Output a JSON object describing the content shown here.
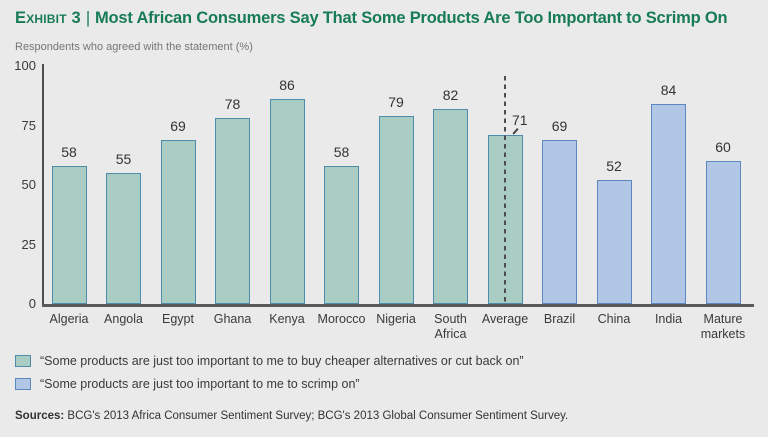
{
  "header": {
    "exhibit_label": "Exhibit 3",
    "separator": "|",
    "title": "Most African Consumers Say That Some Products Are Too Important to Scrimp On",
    "title_color": "#177c55",
    "subtitle": "Respondents who agreed with the statement (%)"
  },
  "chart_data": {
    "type": "bar",
    "title": "Most African Consumers Say That Some Products Are Too Important to Scrimp On",
    "ylabel": "Respondents who agreed with the statement (%)",
    "ylim": [
      0,
      100
    ],
    "yticks": [
      0,
      25,
      50,
      75,
      100
    ],
    "grid": false,
    "categories": [
      "Algeria",
      "Angola",
      "Egypt",
      "Ghana",
      "Kenya",
      "Morocco",
      "Nigeria",
      "South Africa",
      "Average",
      "Brazil",
      "China",
      "India",
      "Mature markets"
    ],
    "values": [
      58,
      55,
      69,
      78,
      86,
      58,
      79,
      82,
      71,
      69,
      52,
      84,
      60
    ],
    "series_membership": [
      "africa",
      "africa",
      "africa",
      "africa",
      "africa",
      "africa",
      "africa",
      "africa",
      "africa",
      "global",
      "global",
      "global",
      "global"
    ],
    "annotations": {
      "dashed_line_at": "Average"
    },
    "colors": {
      "africa_fill": "#a9cdc3",
      "africa_border": "#4e8cac",
      "global_fill": "#b2c7e5",
      "global_border": "#5d88bf"
    }
  },
  "legend": [
    {
      "swatch": "africa",
      "label": "“Some products are just too important to me to buy cheaper alternatives or cut back on”"
    },
    {
      "swatch": "global",
      "label": "“Some products are just too important to me to scrimp on”"
    }
  ],
  "sources": {
    "label": "Sources:",
    "text": " BCG's 2013 Africa Consumer Sentiment Survey; BCG's 2013 Global Consumer Sentiment Survey."
  }
}
